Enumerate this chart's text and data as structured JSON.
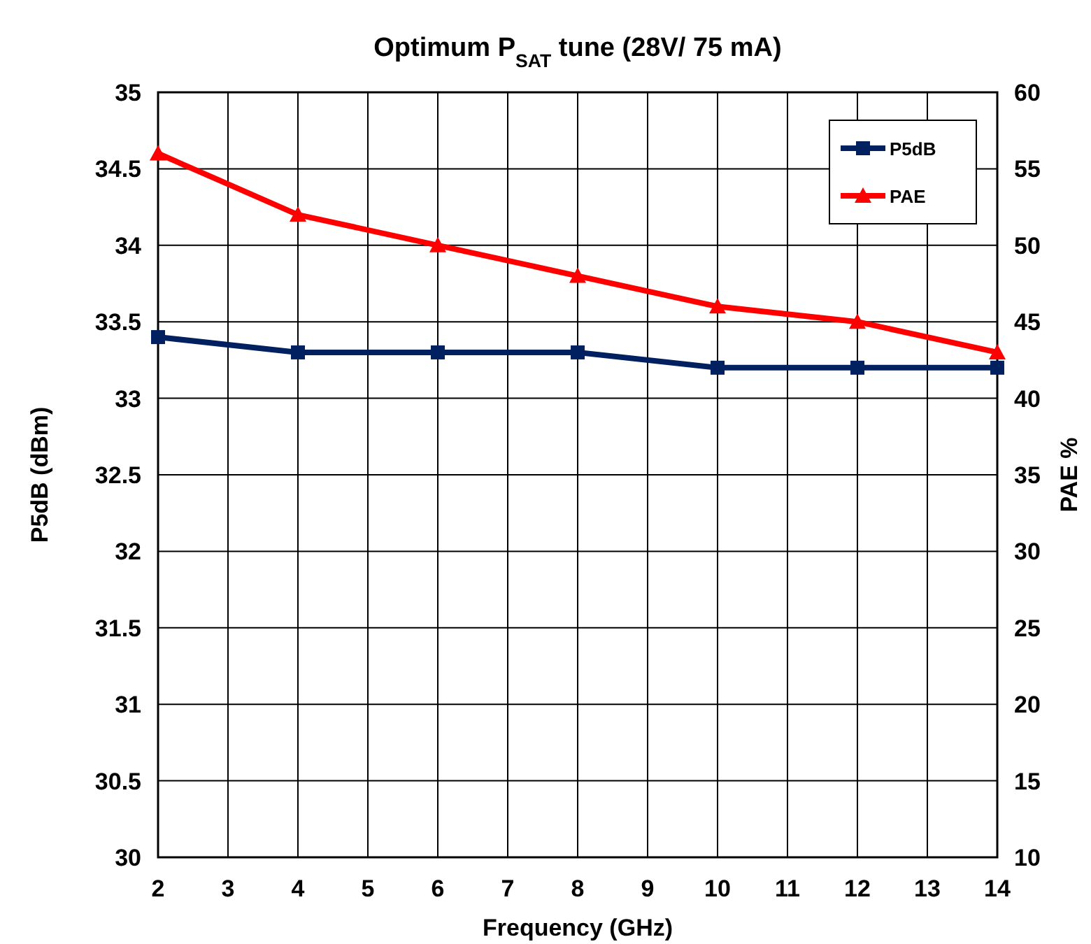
{
  "chart_data": {
    "type": "line",
    "title": "Optimum P$_{SAT}$ tune (28V/ 75 mA)",
    "xlabel": "Frequency (GHz)",
    "ylabel": "P5dB (dBm)",
    "y2label": "PAE %",
    "x": [
      2,
      4,
      6,
      8,
      10,
      12,
      14
    ],
    "series": [
      {
        "name": "P5dB",
        "color": "#002060",
        "marker": "square",
        "values": [
          33.4,
          33.3,
          33.3,
          33.3,
          33.2,
          33.2,
          33.2
        ]
      },
      {
        "name": "PAE",
        "color": "#ff0000",
        "marker": "triangle",
        "axis": "y2",
        "values": [
          56,
          52,
          50,
          48,
          46,
          45,
          43
        ]
      }
    ],
    "xlim": [
      2,
      14
    ],
    "xticks": [
      2,
      3,
      4,
      5,
      6,
      7,
      8,
      9,
      10,
      11,
      12,
      13,
      14
    ],
    "ylim": [
      30,
      35
    ],
    "yticks": [
      30,
      30.5,
      31,
      31.5,
      32,
      32.5,
      33,
      33.5,
      34,
      34.5,
      35
    ],
    "y2lim": [
      10,
      60
    ],
    "y2ticks": [
      10,
      15,
      20,
      25,
      30,
      35,
      40,
      45,
      50,
      55,
      60
    ],
    "grid": true,
    "legend": "top right",
    "line_style": "solid"
  }
}
